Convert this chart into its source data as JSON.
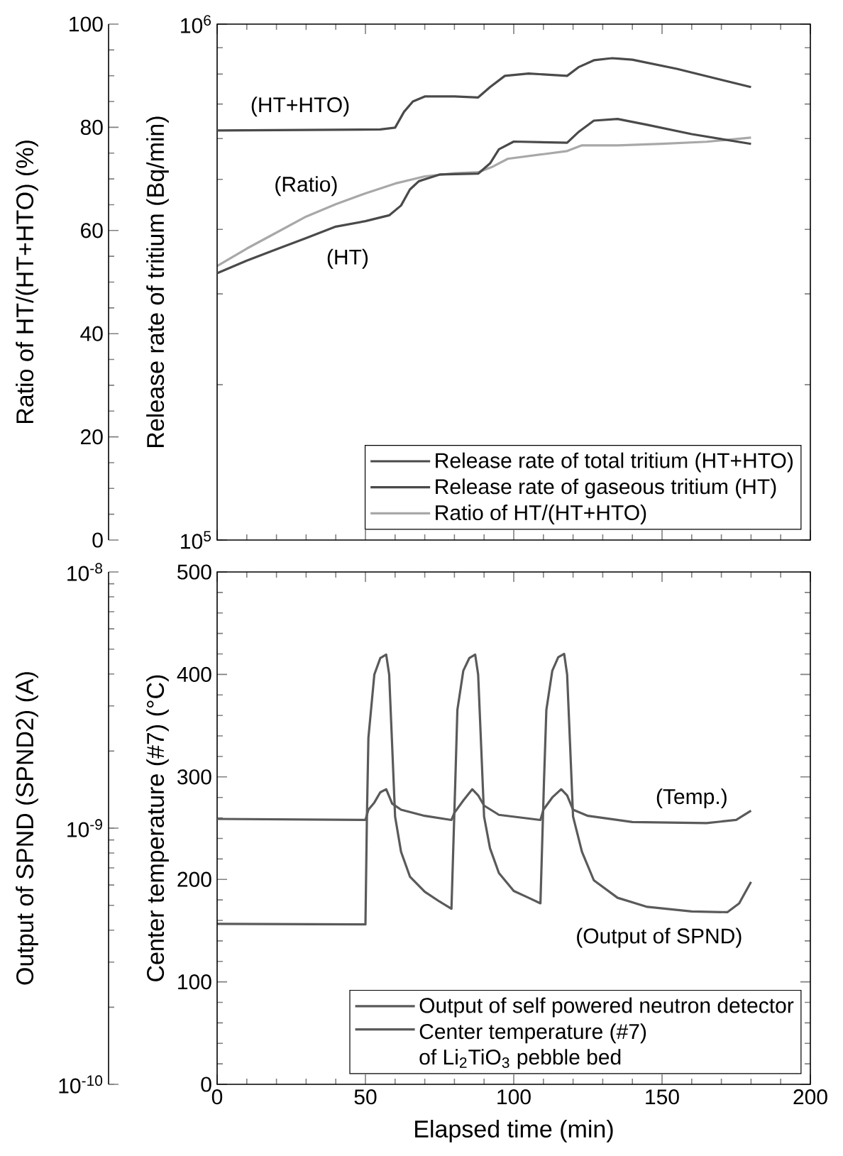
{
  "chart_data": [
    {
      "type": "line",
      "ylabel": "Ratio of HT/(HT+HTO) (%)",
      "y2label": "Release rate of tritium (Bq/min)",
      "xlim": [
        0,
        200
      ],
      "xticks": [
        0,
        50,
        100,
        150,
        200
      ],
      "ylim": [
        0,
        100
      ],
      "yticks": [
        0,
        20,
        40,
        60,
        80,
        100
      ],
      "y2lim": [
        100000,
        1000000
      ],
      "y2ticks": [
        {
          "value": 100000,
          "label": "10$^{5}$"
        },
        {
          "value": 1000000,
          "label": "10$^{6}$"
        }
      ],
      "log": "y2",
      "tick_labels": "y",
      "legend": "bottom right",
      "series": [
        {
          "name": "Release rate of total tritium (HT+HTO)",
          "color": "#4a4a4a",
          "axis": "y2",
          "x": [
            0,
            55,
            60,
            63,
            66,
            70,
            80,
            88,
            92,
            97,
            105,
            118,
            122,
            127,
            133,
            140,
            155,
            170,
            180
          ],
          "values": [
            622000,
            625000,
            630000,
            676000,
            708000,
            724000,
            724000,
            721000,
            755000,
            794000,
            802000,
            794000,
            826000,
            851000,
            859000,
            853000,
            819000,
            780000,
            755000
          ]
        },
        {
          "name": "Release rate of gaseous tritium (HT)",
          "color": "#4a4a4a",
          "axis": "y2",
          "x": [
            0,
            10,
            20,
            30,
            40,
            50,
            58,
            62,
            65,
            68,
            75,
            88,
            92,
            95,
            100,
            118,
            122,
            127,
            135,
            145,
            160,
            180
          ],
          "values": [
            329000,
            348000,
            366000,
            385000,
            405000,
            415000,
            426000,
            445000,
            478000,
            496000,
            511000,
            513000,
            537000,
            572000,
            592000,
            589000,
            619000,
            650000,
            655000,
            638000,
            612000,
            586000
          ]
        },
        {
          "name": "Ratio of HT/(HT+HTO)",
          "color": "#a8a8a8",
          "x": [
            0,
            10,
            20,
            30,
            40,
            50,
            60,
            70,
            80,
            88,
            93,
            98,
            110,
            118,
            123,
            135,
            150,
            165,
            180
          ],
          "values": [
            53.1,
            56.5,
            59.6,
            62.7,
            65.1,
            67.2,
            69.1,
            70.5,
            71.1,
            71.3,
            72.4,
            73.9,
            74.8,
            75.4,
            76.5,
            76.5,
            76.8,
            77.2,
            78.0
          ]
        }
      ],
      "annotations": [
        "(HT+HTO)",
        "(Ratio)",
        "(HT)"
      ]
    },
    {
      "type": "line",
      "xlabel": "Elapsed time (min)",
      "ylabel": "Output of SPND (SPND2) (A)",
      "y2label": "Center temperature (#7) (°C)",
      "xlim": [
        0,
        200
      ],
      "xticks": [
        0,
        50,
        100,
        150,
        200
      ],
      "ylim": [
        1e-10,
        1e-08
      ],
      "yticks": [
        {
          "value": 1e-10,
          "label": "10$^{-10}$"
        },
        {
          "value": 1e-09,
          "label": "10$^{-9}$"
        },
        {
          "value": 1e-08,
          "label": "10$^{-8}$"
        }
      ],
      "y2lim": [
        0,
        500
      ],
      "y2ticks": [
        0,
        100,
        200,
        300,
        400,
        500
      ],
      "log": "y",
      "legend": "bottom right",
      "series": [
        {
          "name": "Output of self powered neutron detector",
          "color": "#5a5a5a",
          "x": [
            0,
            50,
            50.5,
            51,
            53,
            55,
            57,
            58,
            59,
            60,
            62,
            65,
            70,
            75,
            79,
            80.3,
            81,
            83,
            85,
            87,
            88,
            89,
            90,
            92,
            95,
            100,
            105,
            109,
            110.2,
            111,
            113,
            115,
            117,
            118,
            119,
            120,
            123,
            127,
            135,
            145,
            160,
            172,
            176,
            180
          ],
          "values": [
            4.23e-10,
            4.21e-10,
            1.11e-09,
            2.25e-09,
            3.98e-09,
            4.61e-09,
            4.76e-09,
            3.98e-09,
            2.11e-09,
            1.11e-09,
            8.09e-10,
            6.47e-10,
            5.65e-10,
            5.17e-10,
            4.85e-10,
            1.53e-09,
            2.9e-09,
            4.12e-09,
            4.61e-09,
            4.76e-09,
            3.98e-09,
            2.11e-09,
            1.11e-09,
            8.35e-10,
            6.68e-10,
            5.69e-10,
            5.35e-10,
            5.09e-10,
            1.53e-09,
            2.9e-09,
            4.12e-09,
            4.65e-09,
            4.79e-09,
            3.98e-09,
            2.11e-09,
            1.11e-09,
            8.09e-10,
            6.26e-10,
            5.35e-10,
            4.93e-10,
            4.73e-10,
            4.7e-10,
            5.09e-10,
            6.17e-10
          ]
        },
        {
          "name": "Center temperature (#7) of Li$_{2}$TiO$_{3}$ pebble bed",
          "color": "#5a5a5a",
          "axis": "y2",
          "x": [
            0,
            50,
            51,
            53,
            55,
            57,
            59,
            62,
            70,
            79,
            80,
            83,
            86,
            88,
            90,
            95,
            109,
            110,
            113,
            116,
            118,
            120,
            125,
            140,
            165,
            175,
            180
          ],
          "values": [
            259,
            258,
            268,
            275,
            285,
            288,
            274,
            268,
            262,
            258,
            265,
            277,
            288,
            282,
            272,
            263,
            258,
            268,
            280,
            288,
            282,
            268,
            262,
            256,
            255,
            258,
            267
          ]
        }
      ],
      "annotations": [
        "(Temp.)",
        "(Output of SPND)"
      ]
    }
  ]
}
